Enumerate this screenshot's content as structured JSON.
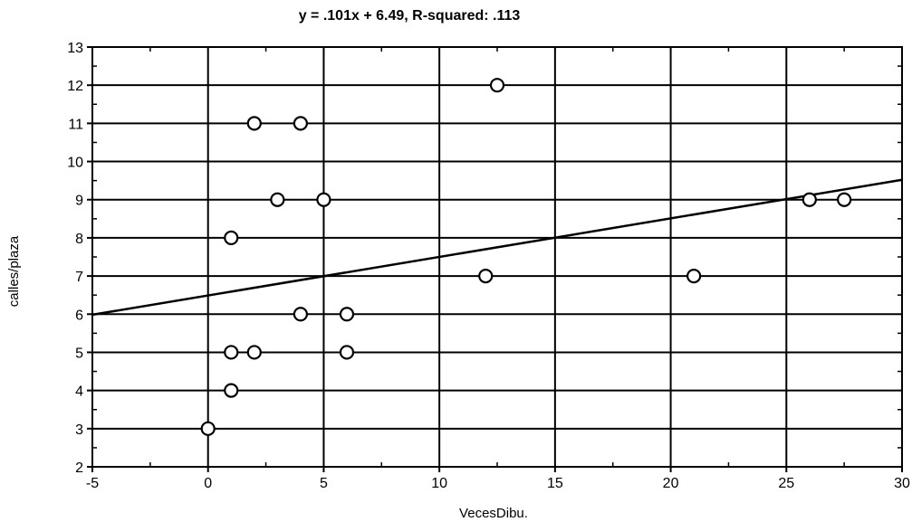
{
  "chart_data": {
    "type": "scatter",
    "title": "y = .101x + 6.49, R-squared: .113",
    "xlabel": "VecesDibu.",
    "ylabel": "calles/plaza",
    "xlim": [
      -5,
      30
    ],
    "ylim": [
      2,
      13
    ],
    "x_ticks": [
      "-5",
      "0",
      "5",
      "10",
      "15",
      "20",
      "25",
      "30"
    ],
    "y_ticks": [
      "2",
      "3",
      "4",
      "5",
      "6",
      "7",
      "8",
      "9",
      "10",
      "11",
      "12",
      "13"
    ],
    "grid": true,
    "series": [
      {
        "points": [
          {
            "x": 0,
            "y": 3
          },
          {
            "x": 1,
            "y": 4
          },
          {
            "x": 1,
            "y": 5
          },
          {
            "x": 2,
            "y": 5
          },
          {
            "x": 6,
            "y": 5
          },
          {
            "x": 4,
            "y": 6
          },
          {
            "x": 6,
            "y": 6
          },
          {
            "x": 12,
            "y": 7
          },
          {
            "x": 21,
            "y": 7
          },
          {
            "x": 1,
            "y": 8
          },
          {
            "x": 3,
            "y": 9
          },
          {
            "x": 5,
            "y": 9
          },
          {
            "x": 26,
            "y": 9
          },
          {
            "x": 27.5,
            "y": 9
          },
          {
            "x": 2,
            "y": 11
          },
          {
            "x": 4,
            "y": 11
          },
          {
            "x": 12.5,
            "y": 12
          }
        ]
      }
    ],
    "regression": {
      "slope": 0.101,
      "intercept": 6.49
    }
  },
  "style": {
    "line_color": "#000000",
    "marker_color": "#000000",
    "background": "#ffffff"
  }
}
